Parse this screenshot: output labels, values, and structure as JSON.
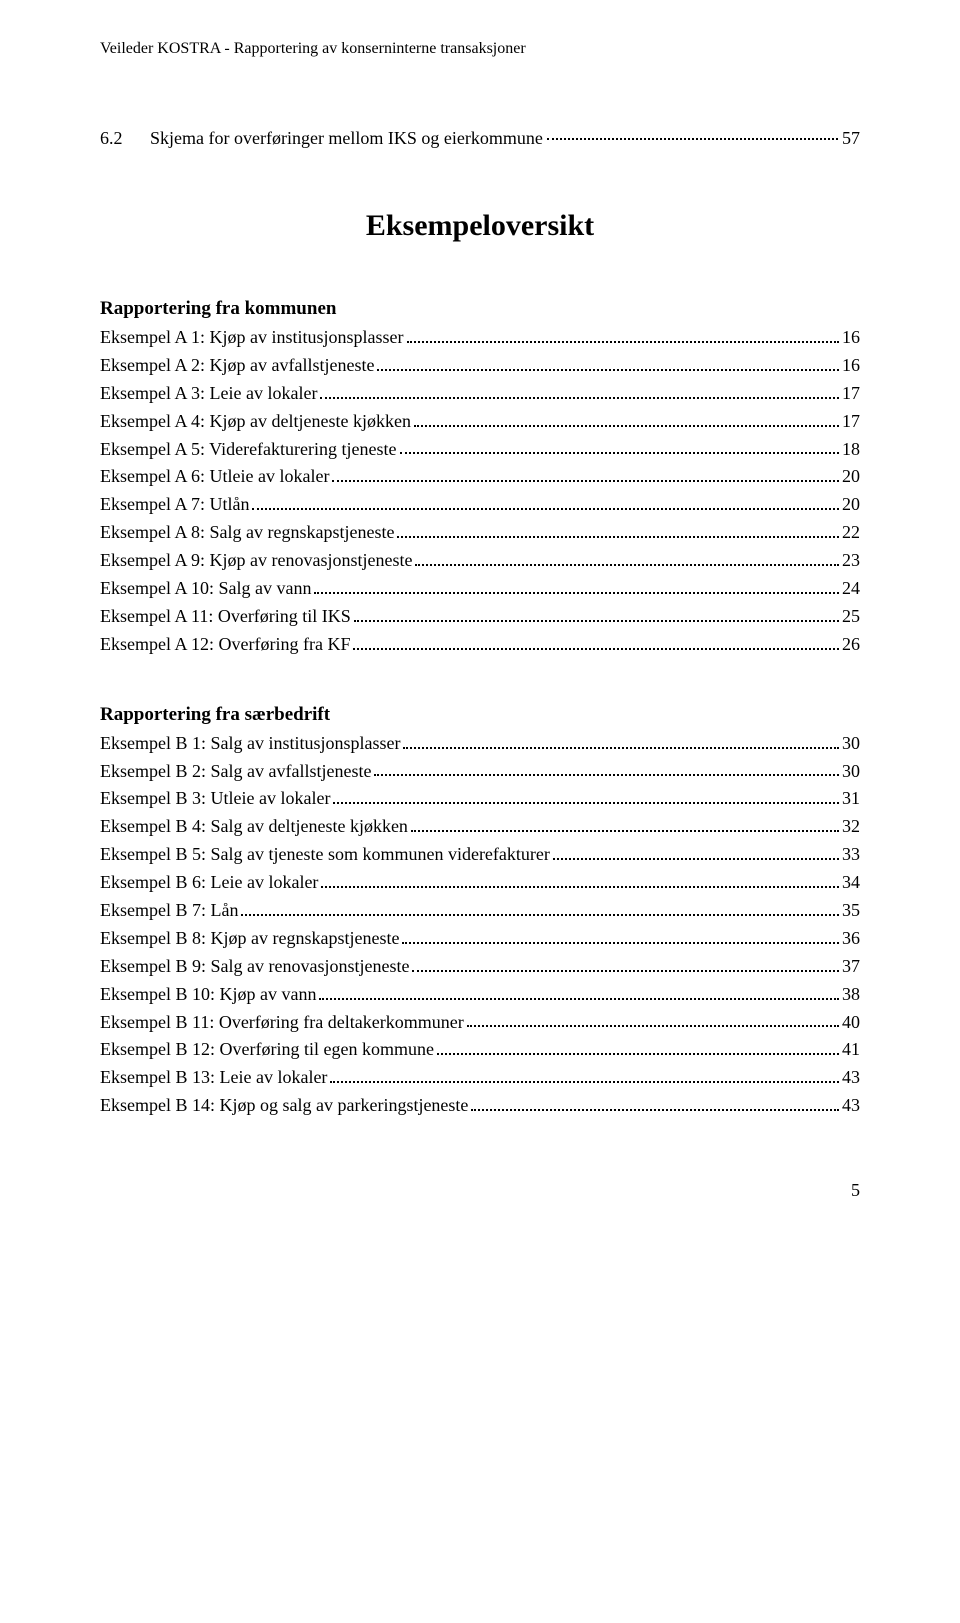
{
  "running_head": "Veileder KOSTRA - Rapportering av konserninterne transaksjoner",
  "top_entry": {
    "number": "6.2",
    "title": "Skjema for overføringer mellom IKS og eierkommune",
    "page": "57"
  },
  "overview_title": "Eksempeloversikt",
  "sections": [
    {
      "heading": "Rapportering fra kommunen",
      "items": [
        {
          "label": "Eksempel A 1: Kjøp av institusjonsplasser",
          "page": "16"
        },
        {
          "label": "Eksempel A 2: Kjøp av avfallstjeneste",
          "page": "16"
        },
        {
          "label": "Eksempel A 3: Leie av lokaler",
          "page": "17"
        },
        {
          "label": "Eksempel A 4: Kjøp av deltjeneste kjøkken",
          "page": "17"
        },
        {
          "label": "Eksempel A 5: Viderefakturering tjeneste",
          "page": "18"
        },
        {
          "label": "Eksempel A 6: Utleie av lokaler",
          "page": "20"
        },
        {
          "label": "Eksempel A 7: Utlån",
          "page": "20"
        },
        {
          "label": "Eksempel A 8: Salg av regnskapstjeneste",
          "page": "22"
        },
        {
          "label": "Eksempel A 9: Kjøp av renovasjonstjeneste",
          "page": "23"
        },
        {
          "label": "Eksempel A 10: Salg av vann",
          "page": "24"
        },
        {
          "label": "Eksempel A 11: Overføring til IKS",
          "page": "25"
        },
        {
          "label": "Eksempel A 12: Overføring fra KF",
          "page": "26"
        }
      ]
    },
    {
      "heading": "Rapportering fra særbedrift",
      "items": [
        {
          "label": "Eksempel B 1: Salg av institusjonsplasser",
          "page": "30"
        },
        {
          "label": "Eksempel B 2: Salg av avfallstjeneste",
          "page": "30"
        },
        {
          "label": "Eksempel B 3: Utleie av lokaler",
          "page": "31"
        },
        {
          "label": "Eksempel B 4: Salg av deltjeneste kjøkken",
          "page": "32"
        },
        {
          "label": "Eksempel B 5: Salg av tjeneste som kommunen viderefakturer",
          "page": "33"
        },
        {
          "label": "Eksempel B 6: Leie av lokaler",
          "page": "34"
        },
        {
          "label": "Eksempel B 7: Lån",
          "page": "35"
        },
        {
          "label": "Eksempel B 8: Kjøp av regnskapstjeneste",
          "page": "36"
        },
        {
          "label": "Eksempel B 9: Salg av renovasjonstjeneste",
          "page": "37"
        },
        {
          "label": "Eksempel B 10: Kjøp av vann",
          "page": "38"
        },
        {
          "label": "Eksempel B 11: Overføring fra deltakerkommuner",
          "page": "40"
        },
        {
          "label": "Eksempel B 12: Overføring til egen kommune",
          "page": "41"
        },
        {
          "label": "Eksempel B 13: Leie av lokaler",
          "page": "43"
        },
        {
          "label": "Eksempel B 14: Kjøp og salg av parkeringstjeneste",
          "page": "43"
        }
      ]
    }
  ],
  "page_number": "5"
}
